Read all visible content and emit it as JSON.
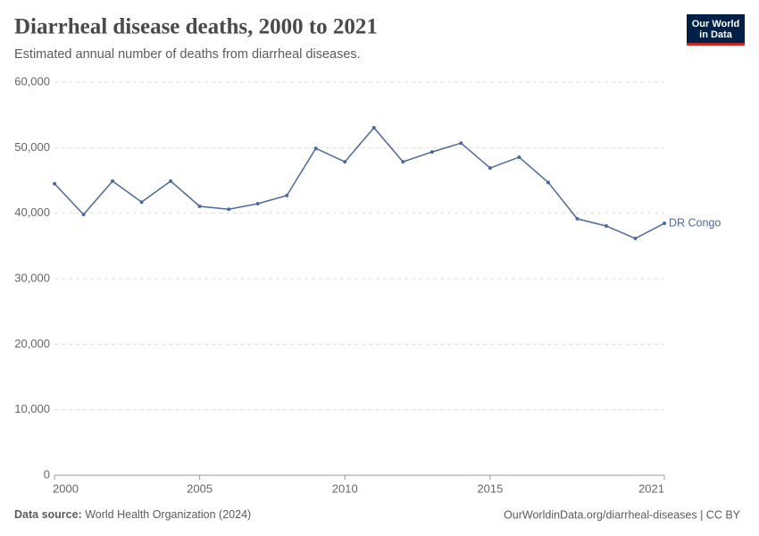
{
  "header": {
    "logo": [
      "Our World",
      "in Data"
    ]
  },
  "chart_data": {
    "type": "line",
    "title": "Diarrheal disease deaths, 2000 to 2021",
    "subtitle": "Estimated annual number of deaths from diarrheal diseases.",
    "x": [
      2000,
      2001,
      2002,
      2003,
      2004,
      2005,
      2006,
      2007,
      2008,
      2009,
      2010,
      2011,
      2012,
      2013,
      2014,
      2015,
      2016,
      2017,
      2018,
      2019,
      2020,
      2021
    ],
    "series": [
      {
        "name": "DR Congo",
        "color": "#4c6a9c",
        "values": [
          44500,
          39800,
          44900,
          41700,
          44900,
          41050,
          40600,
          41450,
          42700,
          49900,
          47850,
          53050,
          47850,
          49350,
          50700,
          46900,
          48550,
          44700,
          39150,
          38050,
          36150,
          38450
        ]
      }
    ],
    "xlim": [
      2000,
      2021
    ],
    "xticks": [
      2000,
      2005,
      2010,
      2015,
      2021
    ],
    "ylim": [
      0,
      60000
    ],
    "yticks": [
      0,
      {
        "value": 10000,
        "label": "10,000"
      },
      {
        "value": 20000,
        "label": "20,000"
      },
      {
        "value": 30000,
        "label": "30,000"
      },
      {
        "value": 40000,
        "label": "40,000"
      },
      {
        "value": 50000,
        "label": "50,000"
      },
      {
        "value": 60000,
        "label": "60,000"
      }
    ],
    "grid": true
  },
  "footer": {
    "source_label": "Data source:",
    "source": "World Health Organization (2024)",
    "url": "OurWorldinData.org/diarrheal-diseases | CC BY"
  }
}
